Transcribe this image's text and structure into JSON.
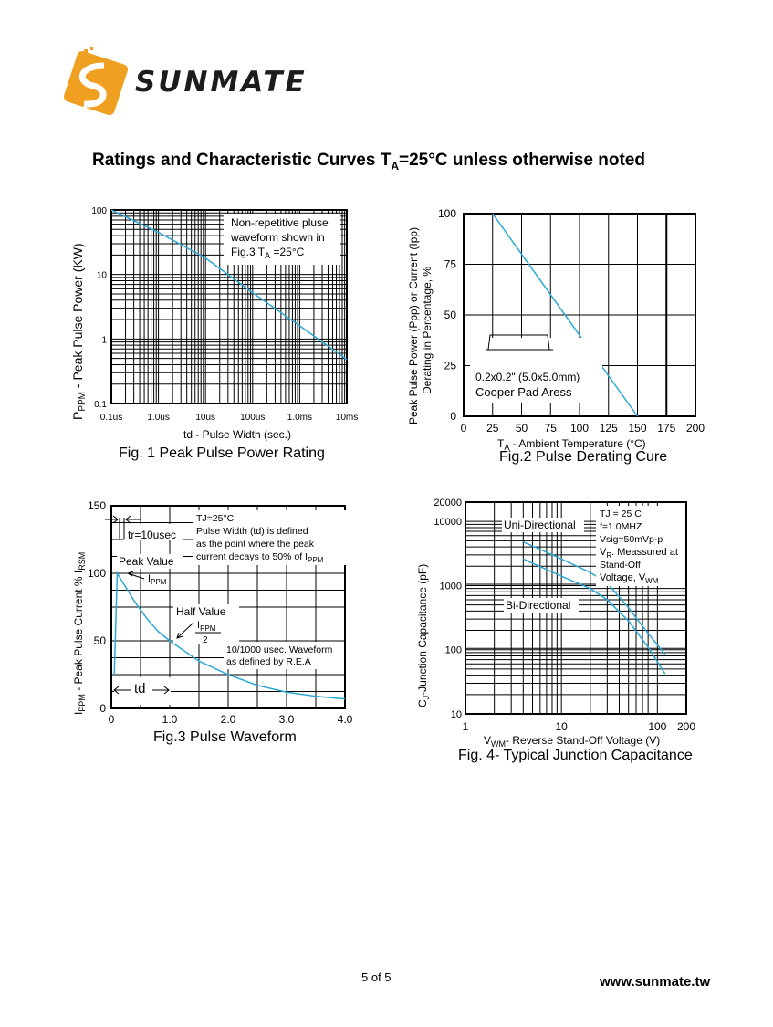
{
  "header": {
    "logo_text": "SUNMATE",
    "heading_main": "Ratings and Characteristic Curves T",
    "heading_sub": "A",
    "heading_rest": "=25°C unless otherwise noted"
  },
  "footer": {
    "page": "5 of 5",
    "url": "www.sunmate.tw"
  },
  "colors": {
    "curve": "#29a8d4",
    "grid": "#000000",
    "logo_orange": "#f0a020"
  },
  "chart_data": [
    {
      "id": "fig1",
      "type": "line",
      "caption": "Fig. 1 Peak Pulse Power Rating",
      "title": "",
      "xlabel": "td - Pulse Width (sec.)",
      "ylabel_main": "P",
      "ylabel_sub": "PPM",
      "ylabel_rest": " - Peak Pulse Power (KW)",
      "x_scale": "log",
      "y_scale": "log",
      "xlim": [
        1e-07,
        0.01
      ],
      "ylim": [
        0.1,
        100
      ],
      "xticks": [
        1e-07,
        1e-06,
        1e-05,
        0.0001,
        0.001,
        0.01
      ],
      "xtick_labels": [
        "0.1us",
        "1.0us",
        "10us",
        "100us",
        "1.0ms",
        "10ms"
      ],
      "yticks": [
        0.1,
        1,
        10,
        100
      ],
      "ytick_labels": [
        "0.1",
        "1",
        "10",
        "100"
      ],
      "grid": true,
      "series": [
        {
          "x": [
            1e-07,
            1e-06,
            1e-05,
            0.0001,
            0.001,
            0.01
          ],
          "y": [
            100,
            45,
            18,
            5.2,
            1.6,
            0.48
          ]
        }
      ],
      "annotation": {
        "line1": "Non-repetitive pluse",
        "line2": "waveform shown in",
        "line3_main": "Fig.3 T",
        "line3_sub": "A",
        "line3_rest": " =25°C"
      }
    },
    {
      "id": "fig2",
      "type": "line",
      "caption": "Fig.2 Pulse Derating Cure",
      "title": "",
      "xlabel_main": "T",
      "xlabel_sub": "A",
      "xlabel_rest": " - Ambient Temperature (°C)",
      "ylabel_line1": "Peak Pulse Power (Ppp) or Current (Ipp)",
      "ylabel_line2": "Derating in Percentage, %",
      "xlim": [
        0,
        200
      ],
      "ylim": [
        0,
        100
      ],
      "xticks": [
        0,
        25,
        50,
        75,
        100,
        125,
        150,
        175,
        200
      ],
      "yticks": [
        0,
        25,
        50,
        75,
        100
      ],
      "grid": true,
      "series": [
        {
          "x": [
            25,
            150
          ],
          "y": [
            100,
            0
          ]
        }
      ],
      "annotation": {
        "line1": "0.2x0.2\" (5.0x5.0mm)",
        "line2": "Cooper Pad Aress"
      }
    },
    {
      "id": "fig3",
      "type": "line",
      "caption": "Fig.3 Pulse Waveform",
      "title": "",
      "xlabel": "",
      "ylabel_main": "I",
      "ylabel_sub1": "PPM",
      "ylabel_mid": " - Peak Pulse Current % I",
      "ylabel_sub2": "RSM",
      "xlim": [
        0,
        4.0
      ],
      "ylim": [
        0,
        150
      ],
      "xticks": [
        0,
        1.0,
        2.0,
        3.0,
        4.0
      ],
      "xtick_labels": [
        "0",
        "1.0",
        "2.0",
        "3.0",
        "4.0"
      ],
      "yticks": [
        0,
        50,
        100,
        150
      ],
      "grid": true,
      "series": [
        {
          "x": [
            0.05,
            0.1,
            0.2,
            0.4,
            0.6,
            0.8,
            1.0,
            1.5,
            2.0,
            2.5,
            3.0,
            3.5,
            4.0
          ],
          "y": [
            25,
            100,
            93,
            79,
            67,
            57,
            50,
            35,
            25,
            17,
            12,
            9,
            7
          ]
        }
      ],
      "annotations": {
        "tr": "tr=10usec",
        "peak": "Peak Value",
        "ippm": "I",
        "ippm_sub": "PPM",
        "half": "Half Value",
        "half_frac_main": "I",
        "half_frac_sub": "PPM",
        "half_frac_den": "2",
        "td": "td",
        "note1_l1": "TJ=25°C",
        "note1_l2": "Pulse Width (td) is defined",
        "note1_l3": "as the point where the peak",
        "note1_l4_main": "current decays to 50% of I",
        "note1_l4_sub": "PPM",
        "note2_l1": "10/1000 usec. Waveform",
        "note2_l2": "as defined by R.E.A"
      }
    },
    {
      "id": "fig4",
      "type": "line",
      "caption": "Fig. 4- Typical Junction Capacitance",
      "title": "",
      "xlabel_main": "V",
      "xlabel_sub": "WM",
      "xlabel_rest": "- Reverse Stand-Off Voltage (V)",
      "ylabel_main": "C",
      "ylabel_sub": "J",
      "ylabel_rest": "-Junction Capacitance (pF)",
      "x_scale": "log",
      "y_scale": "log",
      "xlim": [
        1,
        200
      ],
      "ylim": [
        10,
        20000
      ],
      "xticks": [
        1,
        10,
        100,
        200
      ],
      "xtick_labels": [
        "1",
        "10",
        "100",
        "200"
      ],
      "yticks": [
        10,
        100,
        1000,
        10000,
        20000
      ],
      "ytick_labels": [
        "10",
        "100",
        "1000",
        "10000",
        "20000"
      ],
      "grid": true,
      "series": [
        {
          "name": "Uni-Directional",
          "x": [
            4,
            10,
            20,
            30,
            50,
            80,
            120
          ],
          "y": [
            4800,
            2600,
            1600,
            1100,
            450,
            180,
            85
          ]
        },
        {
          "name": "Bi-Directional",
          "x": [
            4,
            10,
            20,
            30,
            50,
            80,
            120
          ],
          "y": [
            2600,
            1400,
            900,
            600,
            280,
            110,
            42
          ]
        }
      ],
      "annotation": {
        "l1": "TJ = 25 C",
        "l2": "f=1.0MHZ",
        "l3": "Vsig=50mVp-p",
        "l4_main": "V",
        "l4_sub": "R",
        "l4_rest": ". Meassured at",
        "l5": "Stand-Off",
        "l6_main": "Voltage, V",
        "l6_sub": "WM"
      }
    }
  ]
}
